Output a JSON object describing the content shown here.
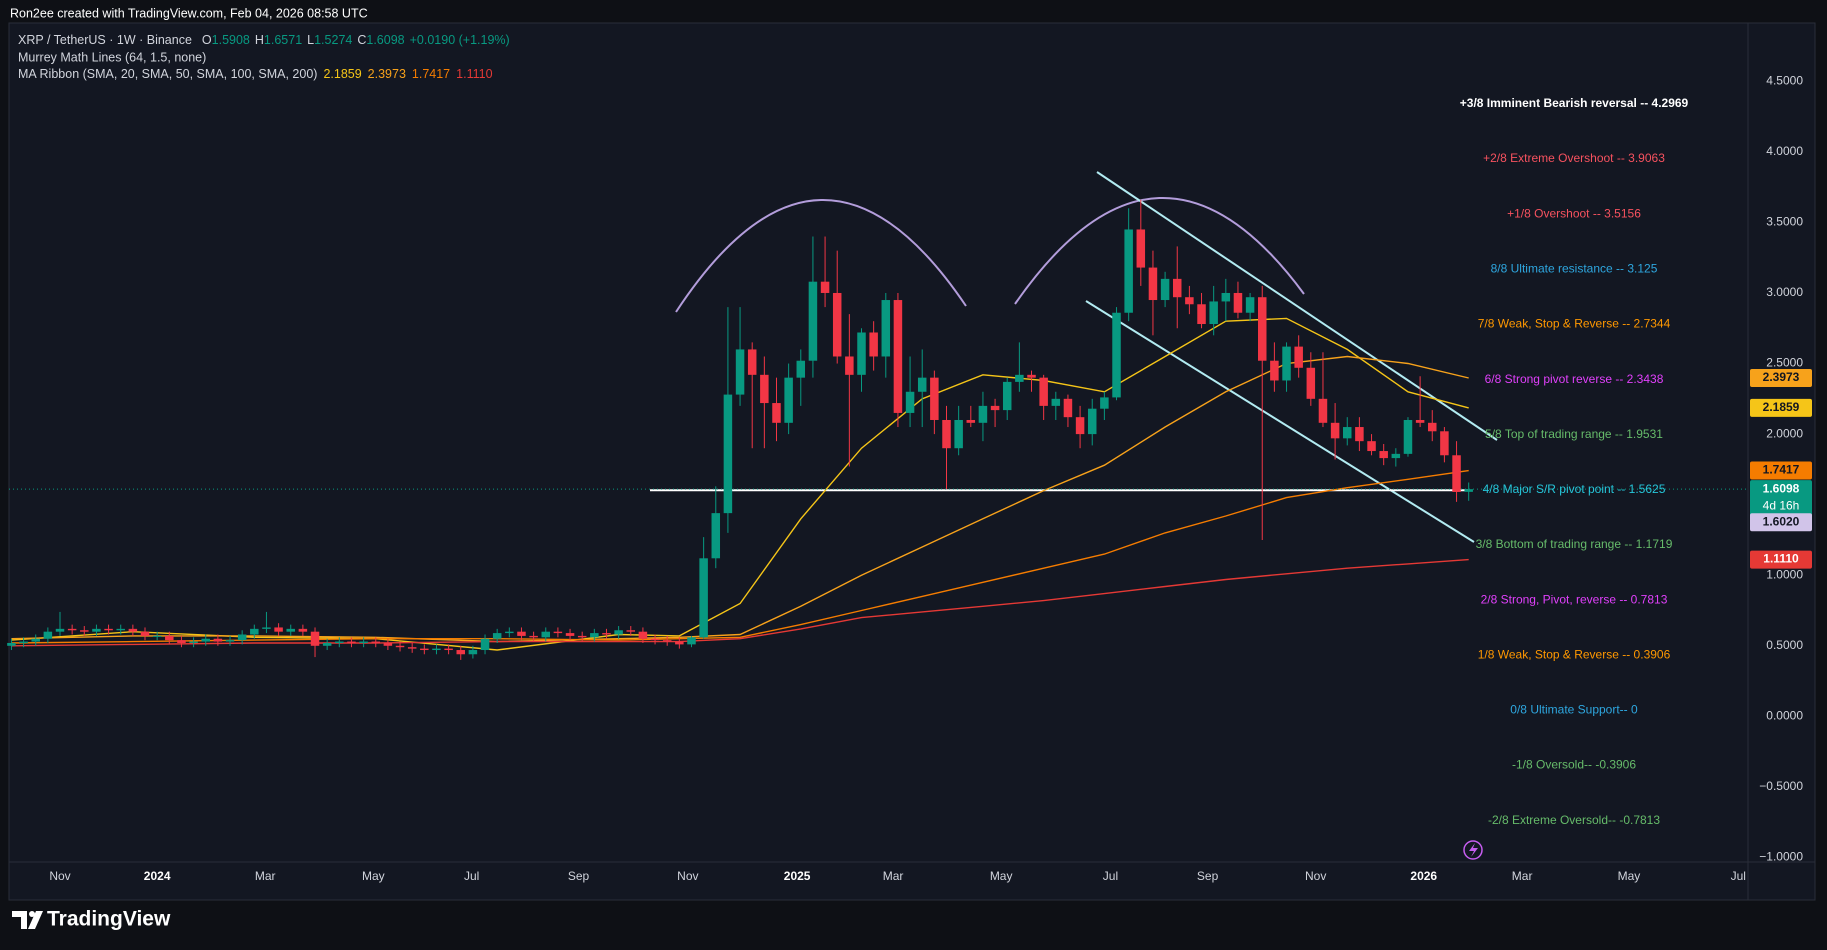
{
  "header": {
    "credit": "Ron2ee created with TradingView.com, Feb 04, 2026 08:58 UTC",
    "symbol": "XRP / TetherUS · 1W · Binance",
    "ohlc_keys": [
      "O",
      "H",
      "L",
      "C"
    ],
    "change": "+0.0190 (+1.19%)",
    "murrey": "Murrey Math Lines (64, 1.5, none)",
    "ribbon": "MA Ribbon (SMA, 20, SMA, 50, SMA, 100, SMA, 200)"
  },
  "brand": "TradingView",
  "chart_data": {
    "type": "candlestick",
    "up_color": "#089981",
    "down_color": "#f23645",
    "x": [
      0,
      1,
      2,
      3,
      4,
      5,
      6,
      7,
      8,
      9,
      10,
      11,
      12,
      13,
      14,
      15,
      16,
      17,
      18,
      19,
      20,
      21,
      22,
      23,
      24,
      25,
      26,
      27,
      28,
      29,
      30,
      31,
      32,
      33,
      34,
      35,
      36,
      37,
      38,
      39,
      40,
      41,
      42,
      43,
      44,
      45,
      46,
      47,
      48,
      49,
      50,
      51,
      52,
      53,
      54,
      55,
      56,
      57,
      58,
      59,
      60,
      61,
      62,
      63,
      64,
      65,
      66,
      67,
      68,
      69,
      70,
      71,
      72,
      73,
      74,
      75,
      76,
      77,
      78,
      79,
      80,
      81,
      82,
      83,
      84,
      85,
      86,
      87,
      88,
      89,
      90,
      91,
      92,
      93,
      94,
      95,
      96,
      97,
      98,
      99,
      100,
      101,
      102,
      103,
      104,
      105,
      106,
      107,
      108,
      109,
      110,
      111,
      112,
      113,
      114,
      115,
      116,
      117,
      118,
      119,
      120
    ],
    "open": [
      0.5,
      0.52,
      0.53,
      0.55,
      0.6,
      0.62,
      0.61,
      0.6,
      0.62,
      0.61,
      0.62,
      0.6,
      0.57,
      0.57,
      0.54,
      0.52,
      0.53,
      0.55,
      0.53,
      0.54,
      0.58,
      0.62,
      0.63,
      0.6,
      0.62,
      0.6,
      0.5,
      0.52,
      0.53,
      0.52,
      0.53,
      0.52,
      0.5,
      0.49,
      0.48,
      0.47,
      0.48,
      0.47,
      0.44,
      0.47,
      0.55,
      0.59,
      0.6,
      0.57,
      0.56,
      0.6,
      0.59,
      0.57,
      0.56,
      0.59,
      0.58,
      0.61,
      0.6,
      0.55,
      0.54,
      0.53,
      0.51,
      0.56,
      1.12,
      1.44,
      2.28,
      2.6,
      2.42,
      2.22,
      2.08,
      2.4,
      2.52,
      3.08,
      3.0,
      2.55,
      2.42,
      2.72,
      2.55,
      2.95,
      2.15,
      2.3,
      2.4,
      2.1,
      1.9,
      2.1,
      2.08,
      2.2,
      2.17,
      2.37,
      2.42,
      2.4,
      2.2,
      2.25,
      2.12,
      2.0,
      2.18,
      2.26,
      2.86,
      3.45,
      3.18,
      2.95,
      3.1,
      2.97,
      2.92,
      2.78,
      2.94,
      3.0,
      2.86,
      2.97,
      2.52,
      2.38,
      2.62,
      2.47,
      2.25,
      2.08,
      1.97,
      2.05,
      1.95,
      1.88,
      1.83,
      1.86,
      2.1,
      2.08,
      2.02,
      1.85,
      1.5908
    ],
    "high": [
      0.55,
      0.56,
      0.58,
      0.63,
      0.74,
      0.65,
      0.64,
      0.65,
      0.65,
      0.65,
      0.65,
      0.63,
      0.6,
      0.6,
      0.57,
      0.56,
      0.58,
      0.58,
      0.57,
      0.61,
      0.65,
      0.74,
      0.66,
      0.65,
      0.65,
      0.63,
      0.55,
      0.56,
      0.56,
      0.56,
      0.56,
      0.55,
      0.53,
      0.52,
      0.51,
      0.51,
      0.51,
      0.5,
      0.5,
      0.58,
      0.62,
      0.63,
      0.63,
      0.6,
      0.63,
      0.63,
      0.62,
      0.6,
      0.62,
      0.62,
      0.64,
      0.64,
      0.63,
      0.58,
      0.57,
      0.56,
      0.57,
      1.27,
      1.63,
      2.9,
      2.9,
      2.65,
      2.55,
      2.4,
      2.5,
      2.6,
      3.4,
      3.4,
      3.3,
      2.85,
      2.75,
      2.8,
      3.0,
      3.0,
      2.55,
      2.6,
      2.45,
      2.2,
      2.2,
      2.2,
      2.3,
      2.25,
      2.4,
      2.65,
      2.45,
      2.42,
      2.3,
      2.28,
      2.2,
      2.25,
      2.3,
      2.9,
      3.6,
      3.66,
      3.3,
      3.15,
      3.33,
      3.05,
      3.0,
      3.05,
      3.1,
      3.08,
      3.0,
      3.05,
      2.65,
      2.65,
      2.7,
      2.58,
      2.58,
      2.22,
      2.12,
      2.12,
      2.0,
      1.93,
      1.9,
      2.12,
      2.41,
      2.17,
      2.05,
      1.95,
      1.6571
    ],
    "low": [
      0.47,
      0.49,
      0.5,
      0.52,
      0.57,
      0.58,
      0.57,
      0.57,
      0.58,
      0.58,
      0.57,
      0.54,
      0.54,
      0.51,
      0.49,
      0.49,
      0.5,
      0.5,
      0.5,
      0.51,
      0.55,
      0.59,
      0.57,
      0.57,
      0.57,
      0.42,
      0.47,
      0.49,
      0.49,
      0.49,
      0.49,
      0.47,
      0.46,
      0.45,
      0.44,
      0.44,
      0.44,
      0.4,
      0.41,
      0.44,
      0.52,
      0.56,
      0.54,
      0.53,
      0.53,
      0.56,
      0.54,
      0.53,
      0.53,
      0.55,
      0.55,
      0.57,
      0.52,
      0.51,
      0.5,
      0.48,
      0.49,
      0.55,
      1.05,
      1.3,
      2.2,
      1.9,
      1.9,
      1.95,
      2.0,
      2.2,
      2.4,
      2.9,
      2.5,
      1.77,
      2.3,
      2.45,
      2.4,
      2.05,
      2.05,
      2.05,
      2.0,
      1.61,
      1.85,
      2.05,
      1.95,
      2.05,
      2.1,
      2.3,
      2.3,
      2.1,
      2.1,
      2.05,
      1.9,
      1.92,
      2.1,
      2.24,
      2.8,
      3.05,
      2.7,
      2.9,
      2.75,
      2.85,
      2.75,
      2.7,
      2.8,
      2.82,
      2.8,
      1.25,
      2.3,
      2.3,
      2.4,
      2.2,
      2.05,
      1.82,
      1.92,
      1.88,
      1.85,
      1.78,
      1.77,
      1.84,
      2.05,
      1.95,
      1.8,
      1.52,
      1.5274
    ],
    "close": [
      0.52,
      0.53,
      0.55,
      0.6,
      0.62,
      0.61,
      0.6,
      0.62,
      0.61,
      0.62,
      0.6,
      0.57,
      0.57,
      0.54,
      0.52,
      0.53,
      0.55,
      0.53,
      0.54,
      0.58,
      0.62,
      0.63,
      0.6,
      0.62,
      0.6,
      0.5,
      0.52,
      0.53,
      0.52,
      0.53,
      0.52,
      0.5,
      0.49,
      0.48,
      0.47,
      0.48,
      0.47,
      0.44,
      0.47,
      0.55,
      0.59,
      0.6,
      0.57,
      0.56,
      0.6,
      0.59,
      0.57,
      0.56,
      0.59,
      0.58,
      0.61,
      0.6,
      0.55,
      0.54,
      0.53,
      0.51,
      0.56,
      1.12,
      1.44,
      2.28,
      2.6,
      2.42,
      2.22,
      2.08,
      2.4,
      2.52,
      3.08,
      3.0,
      2.55,
      2.42,
      2.72,
      2.55,
      2.95,
      2.15,
      2.3,
      2.4,
      2.1,
      1.9,
      2.1,
      2.08,
      2.2,
      2.17,
      2.37,
      2.42,
      2.4,
      2.2,
      2.25,
      2.12,
      2.0,
      2.18,
      2.26,
      2.86,
      3.45,
      3.18,
      2.95,
      3.1,
      2.97,
      2.92,
      2.78,
      2.94,
      3.0,
      2.86,
      2.97,
      2.52,
      2.38,
      2.62,
      2.47,
      2.25,
      2.08,
      1.97,
      2.05,
      1.95,
      1.88,
      1.83,
      1.86,
      2.1,
      2.08,
      2.02,
      1.85,
      1.59,
      1.6098
    ],
    "countdown": "4d 16h",
    "lines": {
      "x": [
        0,
        10,
        20,
        30,
        40,
        50,
        55,
        60,
        65,
        70,
        75,
        80,
        85,
        90,
        95,
        100,
        105,
        110,
        115,
        120
      ],
      "series": [
        {
          "color": "#f5c518",
          "values": [
            0.54,
            0.6,
            0.56,
            0.55,
            0.47,
            0.58,
            0.57,
            0.8,
            1.4,
            1.9,
            2.25,
            2.42,
            2.38,
            2.3,
            2.55,
            2.8,
            2.82,
            2.6,
            2.3,
            2.1859
          ],
          "value_labels": [
            null,
            null,
            null,
            null,
            null,
            null,
            null,
            null,
            null,
            null,
            null,
            null,
            null,
            null,
            null,
            null,
            null,
            null,
            null,
            "2.1859"
          ]
        },
        {
          "color": "#f7a21b",
          "values": [
            0.55,
            0.57,
            0.57,
            0.56,
            0.53,
            0.55,
            0.56,
            0.58,
            0.78,
            1.0,
            1.2,
            1.4,
            1.6,
            1.78,
            2.05,
            2.3,
            2.5,
            2.55,
            2.5,
            2.3973
          ],
          "value_labels": [
            null,
            null,
            null,
            null,
            null,
            null,
            null,
            null,
            null,
            null,
            null,
            null,
            null,
            null,
            null,
            null,
            null,
            null,
            null,
            "2.3973"
          ]
        },
        {
          "color": "#f57c00",
          "values": [
            0.52,
            0.53,
            0.54,
            0.55,
            0.55,
            0.54,
            0.55,
            0.56,
            0.65,
            0.75,
            0.85,
            0.95,
            1.05,
            1.15,
            1.3,
            1.42,
            1.55,
            1.62,
            1.68,
            1.7417
          ],
          "value_labels": [
            null,
            null,
            null,
            null,
            null,
            null,
            null,
            null,
            null,
            null,
            null,
            null,
            null,
            null,
            null,
            null,
            null,
            null,
            null,
            "1.7417"
          ]
        },
        {
          "color": "#e53935",
          "values": [
            0.5,
            0.51,
            0.52,
            0.52,
            0.53,
            0.53,
            0.53,
            0.55,
            0.62,
            0.7,
            0.74,
            0.78,
            0.82,
            0.87,
            0.92,
            0.97,
            1.01,
            1.05,
            1.08,
            1.111
          ],
          "value_labels": [
            null,
            null,
            null,
            null,
            null,
            null,
            null,
            null,
            null,
            null,
            null,
            null,
            null,
            null,
            null,
            null,
            null,
            null,
            null,
            "1.1110"
          ]
        }
      ]
    },
    "hline": {
      "value": 1.602,
      "label": "1.6020",
      "color": "#ffffff"
    },
    "murrey_levels": [
      {
        "value": 4.2969,
        "label": "+3/8 Imminent Bearish reversal -- 4.2969",
        "color": "#ffffff"
      },
      {
        "value": 3.9063,
        "label": "+2/8 Extreme Overshoot -- 3.9063",
        "color": "#f7525f"
      },
      {
        "value": 3.5156,
        "label": "+1/8 Overshoot -- 3.5156",
        "color": "#f7525f"
      },
      {
        "value": 3.125,
        "label": "8/8 Ultimate resistance -- 3.125",
        "color": "#2ea7e0"
      },
      {
        "value": 2.7344,
        "label": "7/8 Weak, Stop & Reverse -- 2.7344",
        "color": "#ff9800"
      },
      {
        "value": 2.3438,
        "label": "6/8 Strong pivot reverse -- 2.3438",
        "color": "#e040fb"
      },
      {
        "value": 1.9531,
        "label": "5/8 Top of trading range -- 1.9531",
        "color": "#66bb6a"
      },
      {
        "value": 1.5625,
        "label": "4/8 Major S/R pivot point -- 1.5625",
        "color": "#26c6da"
      },
      {
        "value": 1.1719,
        "label": "3/8 Bottom of trading range -- 1.1719",
        "color": "#66bb6a"
      },
      {
        "value": 0.7813,
        "label": "2/8 Strong, Pivot, reverse -- 0.7813",
        "color": "#e040fb"
      },
      {
        "value": 0.3906,
        "label": "1/8 Weak, Stop & Reverse -- 0.3906",
        "color": "#ff9800"
      },
      {
        "value": 0,
        "label": "0/8 Ultimate Support-- 0",
        "color": "#2ea7e0"
      },
      {
        "value": -0.3906,
        "label": "-1/8 Oversold-- -0.3906",
        "color": "#66bb6a"
      },
      {
        "value": -0.7813,
        "label": "-2/8 Extreme Oversold-- -0.7813",
        "color": "#66bb6a"
      }
    ],
    "xlim": [
      -0.2,
      143.0
    ],
    "xticks": [
      {
        "value": 4.0,
        "label": "Nov"
      },
      {
        "value": 12.0,
        "label": "2024"
      },
      {
        "value": 20.9,
        "label": "Mar"
      },
      {
        "value": 29.8,
        "label": "May"
      },
      {
        "value": 37.9,
        "label": "Jul"
      },
      {
        "value": 46.7,
        "label": "Sep"
      },
      {
        "value": 55.7,
        "label": "Nov"
      },
      {
        "value": 64.7,
        "label": "2025"
      },
      {
        "value": 72.6,
        "label": "Mar"
      },
      {
        "value": 81.5,
        "label": "May"
      },
      {
        "value": 90.5,
        "label": "Jul"
      },
      {
        "value": 98.5,
        "label": "Sep"
      },
      {
        "value": 107.4,
        "label": "Nov"
      },
      {
        "value": 116.3,
        "label": "2026"
      },
      {
        "value": 124.4,
        "label": "Mar"
      },
      {
        "value": 133.2,
        "label": "May"
      },
      {
        "value": 142.2,
        "label": "Jul"
      }
    ],
    "ylim": [
      -1.032,
      4.913
    ],
    "yticks": [
      {
        "value": 4.5,
        "label": "4.5000"
      },
      {
        "value": 4,
        "label": "4.0000"
      },
      {
        "value": 3.5,
        "label": "3.5000"
      },
      {
        "value": 3,
        "label": "3.0000"
      },
      {
        "value": 2.5,
        "label": "2.5000"
      },
      {
        "value": 2,
        "label": "2.0000"
      },
      {
        "value": 1,
        "label": "1.0000"
      },
      {
        "value": 0.5,
        "label": "0.5000"
      },
      {
        "value": 0,
        "label": "0.0000"
      },
      {
        "value": -0.5,
        "label": "−0.5000"
      },
      {
        "value": -1,
        "label": "−1.0000"
      }
    ]
  }
}
